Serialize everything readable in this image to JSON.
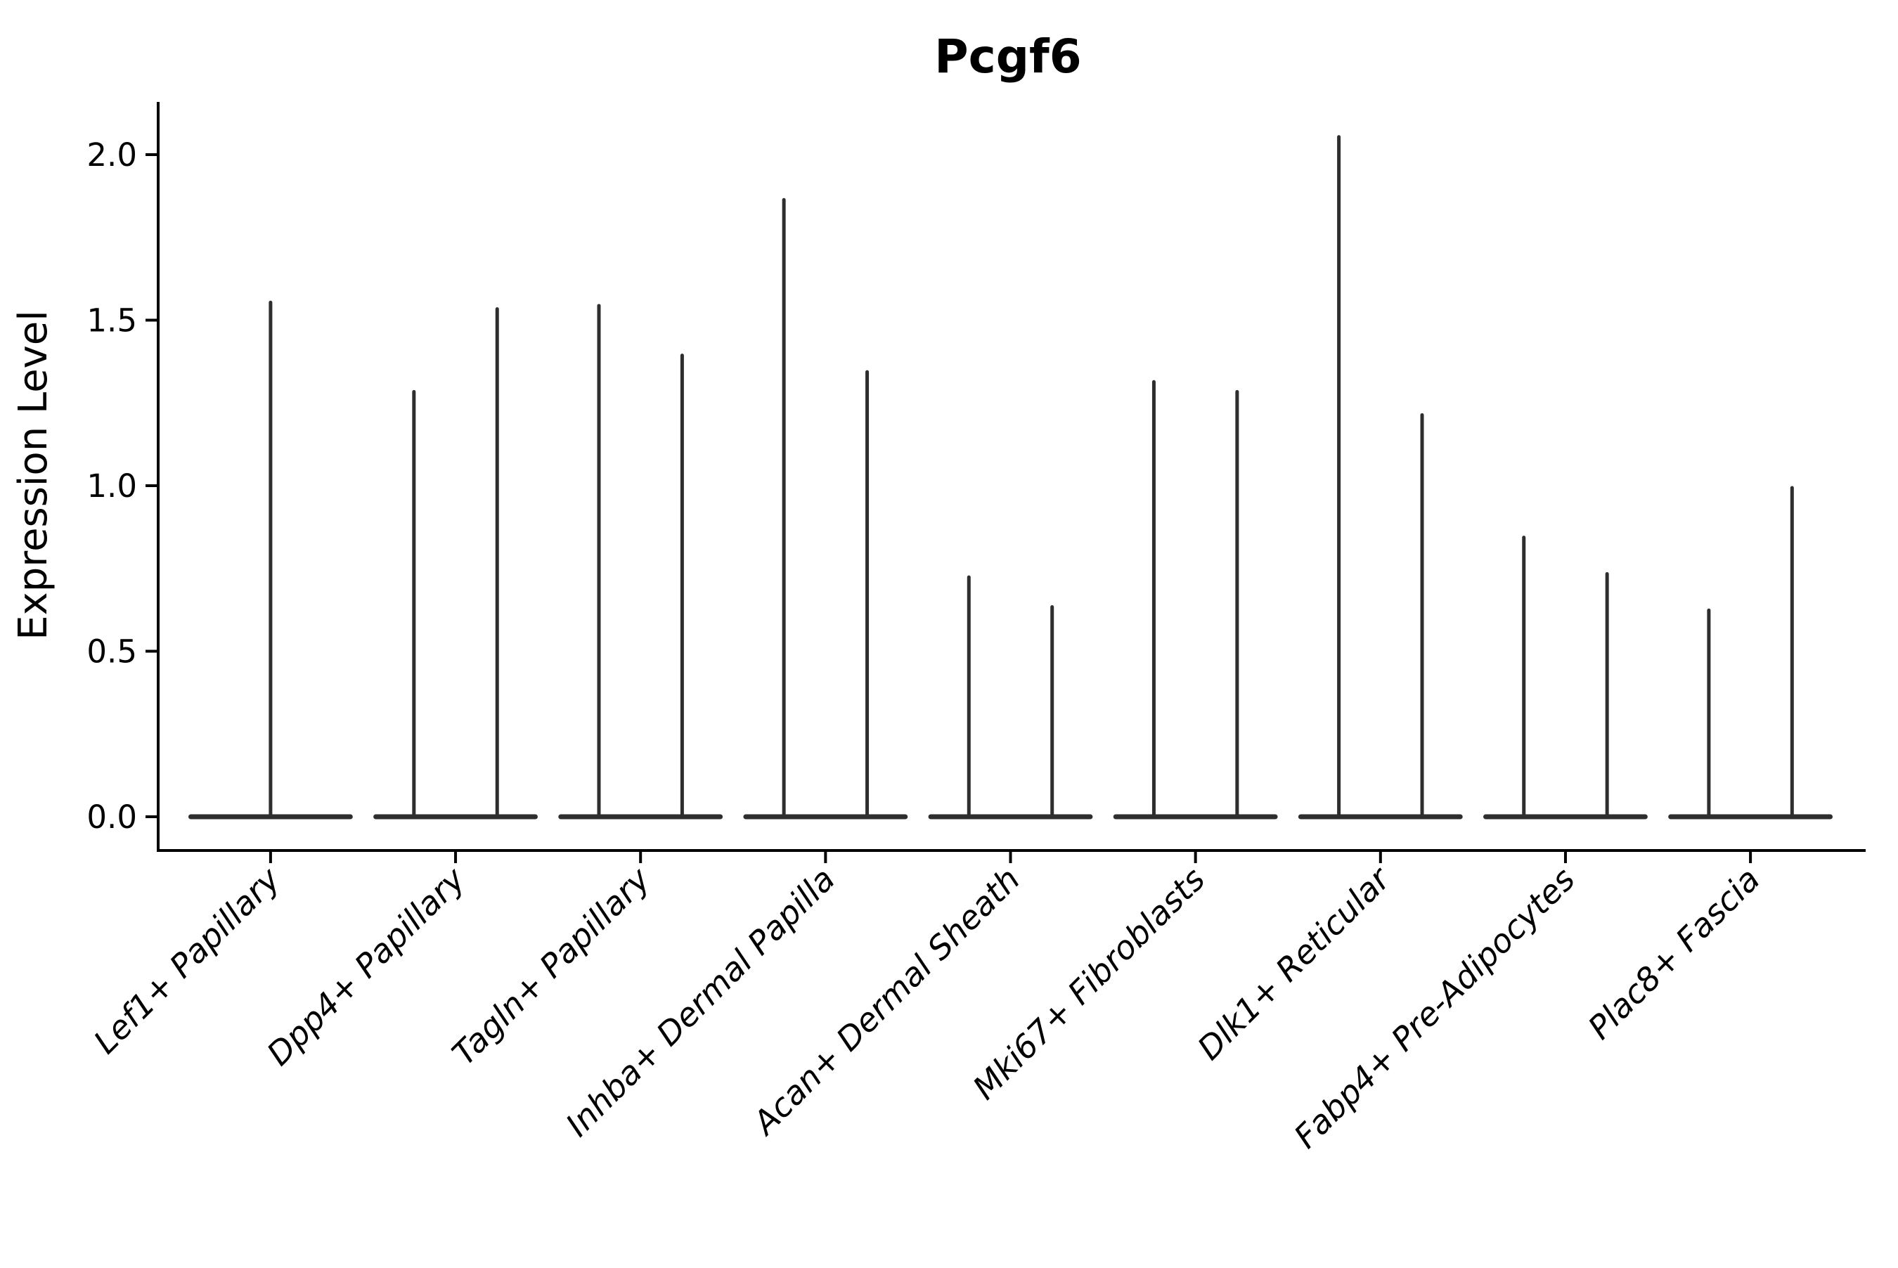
{
  "chart_data": {
    "type": "violin",
    "title": "Pcgf6",
    "xlabel": "",
    "ylabel": "Expression Level",
    "ylim": [
      0,
      2.16
    ],
    "grid": false,
    "legend": "none",
    "y_ticks": [
      {
        "value": 2.0,
        "label": "2.0"
      },
      {
        "value": 1.5,
        "label": "1.5"
      },
      {
        "value": 1.0,
        "label": "1.0"
      },
      {
        "value": 0.5,
        "label": "0.5"
      },
      {
        "value": 0.0,
        "label": "0.0"
      }
    ],
    "categories": [
      "Lef1+ Papillary",
      "Dpp4+ Papillary",
      "Tagln+ Papillary",
      "Inhba+ Dermal Papilla",
      "Acan+ Dermal Sheath",
      "Mki67+ Fibroblasts",
      "Dlk1+ Reticular",
      "Fabp4+ Pre-Adipocytes",
      "Plac8+ Fascia"
    ],
    "series": [
      {
        "category": "Lef1+ Papillary",
        "violin_max_values": [
          1.56
        ]
      },
      {
        "category": "Dpp4+ Papillary",
        "violin_max_values": [
          1.29,
          1.54
        ]
      },
      {
        "category": "Tagln+ Papillary",
        "violin_max_values": [
          1.55,
          1.4
        ]
      },
      {
        "category": "Inhba+ Dermal Papilla",
        "violin_max_values": [
          1.87,
          1.35
        ]
      },
      {
        "category": "Acan+ Dermal Sheath",
        "violin_max_values": [
          0.73,
          0.64
        ]
      },
      {
        "category": "Mki67+ Fibroblasts",
        "violin_max_values": [
          1.32,
          1.29
        ]
      },
      {
        "category": "Dlk1+ Reticular",
        "violin_max_values": [
          2.06,
          1.22
        ]
      },
      {
        "category": "Fabp4+ Pre-Adipocytes",
        "violin_max_values": [
          0.85,
          0.74
        ]
      },
      {
        "category": "Plac8+ Fascia",
        "violin_max_values": [
          0.63,
          1.0
        ]
      }
    ],
    "description": "Violin plot of Pcgf6 expression per fibroblast subtype; violins collapse to a flat baseline at 0 with thin spikes reaching each group's maximum expression."
  },
  "colors": {
    "background": "#ffffff",
    "violin": "#2e2e2e",
    "axis": "#000000",
    "text": "#000000"
  }
}
